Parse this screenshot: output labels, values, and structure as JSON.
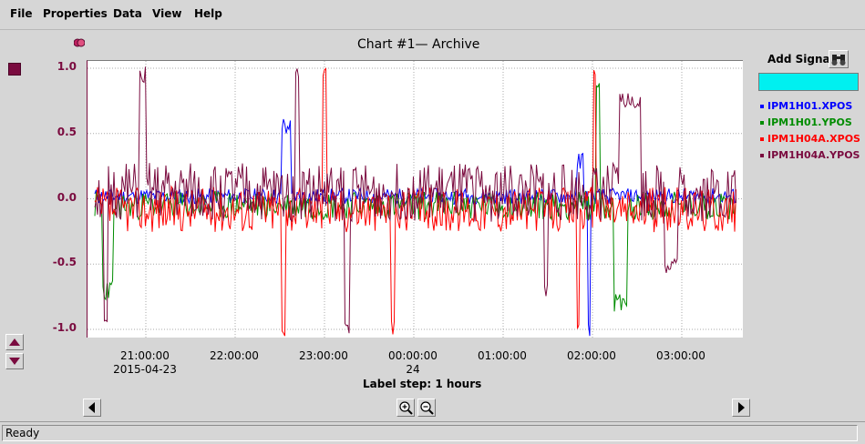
{
  "menu": [
    "File",
    "Properties",
    "Data",
    "View",
    "Help"
  ],
  "chart_title": "Chart #1— Archive",
  "add_signal_label": "Add Signal",
  "signal_input_value": "",
  "status_text": "Ready",
  "label_step": "Label step: 1 hours",
  "chart_data": {
    "type": "line",
    "ylim": [
      -1.0,
      1.0
    ],
    "y_ticks": [
      "1.0",
      "0.5",
      "0.0",
      "-0.5",
      "-1.0"
    ],
    "x_ticks": [
      {
        "label": "21:00:00",
        "sub": "2015-04-23"
      },
      {
        "label": "22:00:00",
        "sub": ""
      },
      {
        "label": "23:00:00",
        "sub": ""
      },
      {
        "label": "00:00:00",
        "sub": "24"
      },
      {
        "label": "01:00:00",
        "sub": ""
      },
      {
        "label": "02:00:00",
        "sub": ""
      },
      {
        "label": "03:00:00",
        "sub": ""
      }
    ],
    "series": [
      {
        "name": "IPM1H01.XPOS",
        "color": "#0000ff"
      },
      {
        "name": "IPM1H01.YPOS",
        "color": "#008c00"
      },
      {
        "name": "IPM1H04A.XPOS",
        "color": "#ff0000"
      },
      {
        "name": "IPM1H04A.YPOS",
        "color": "#7a0b3f"
      }
    ],
    "grid": true
  },
  "icons": {
    "color_square": "series-color-square",
    "binoculars": "binoculars-icon",
    "zoom_in": "zoom-in-icon",
    "zoom_out": "zoom-out-icon"
  }
}
